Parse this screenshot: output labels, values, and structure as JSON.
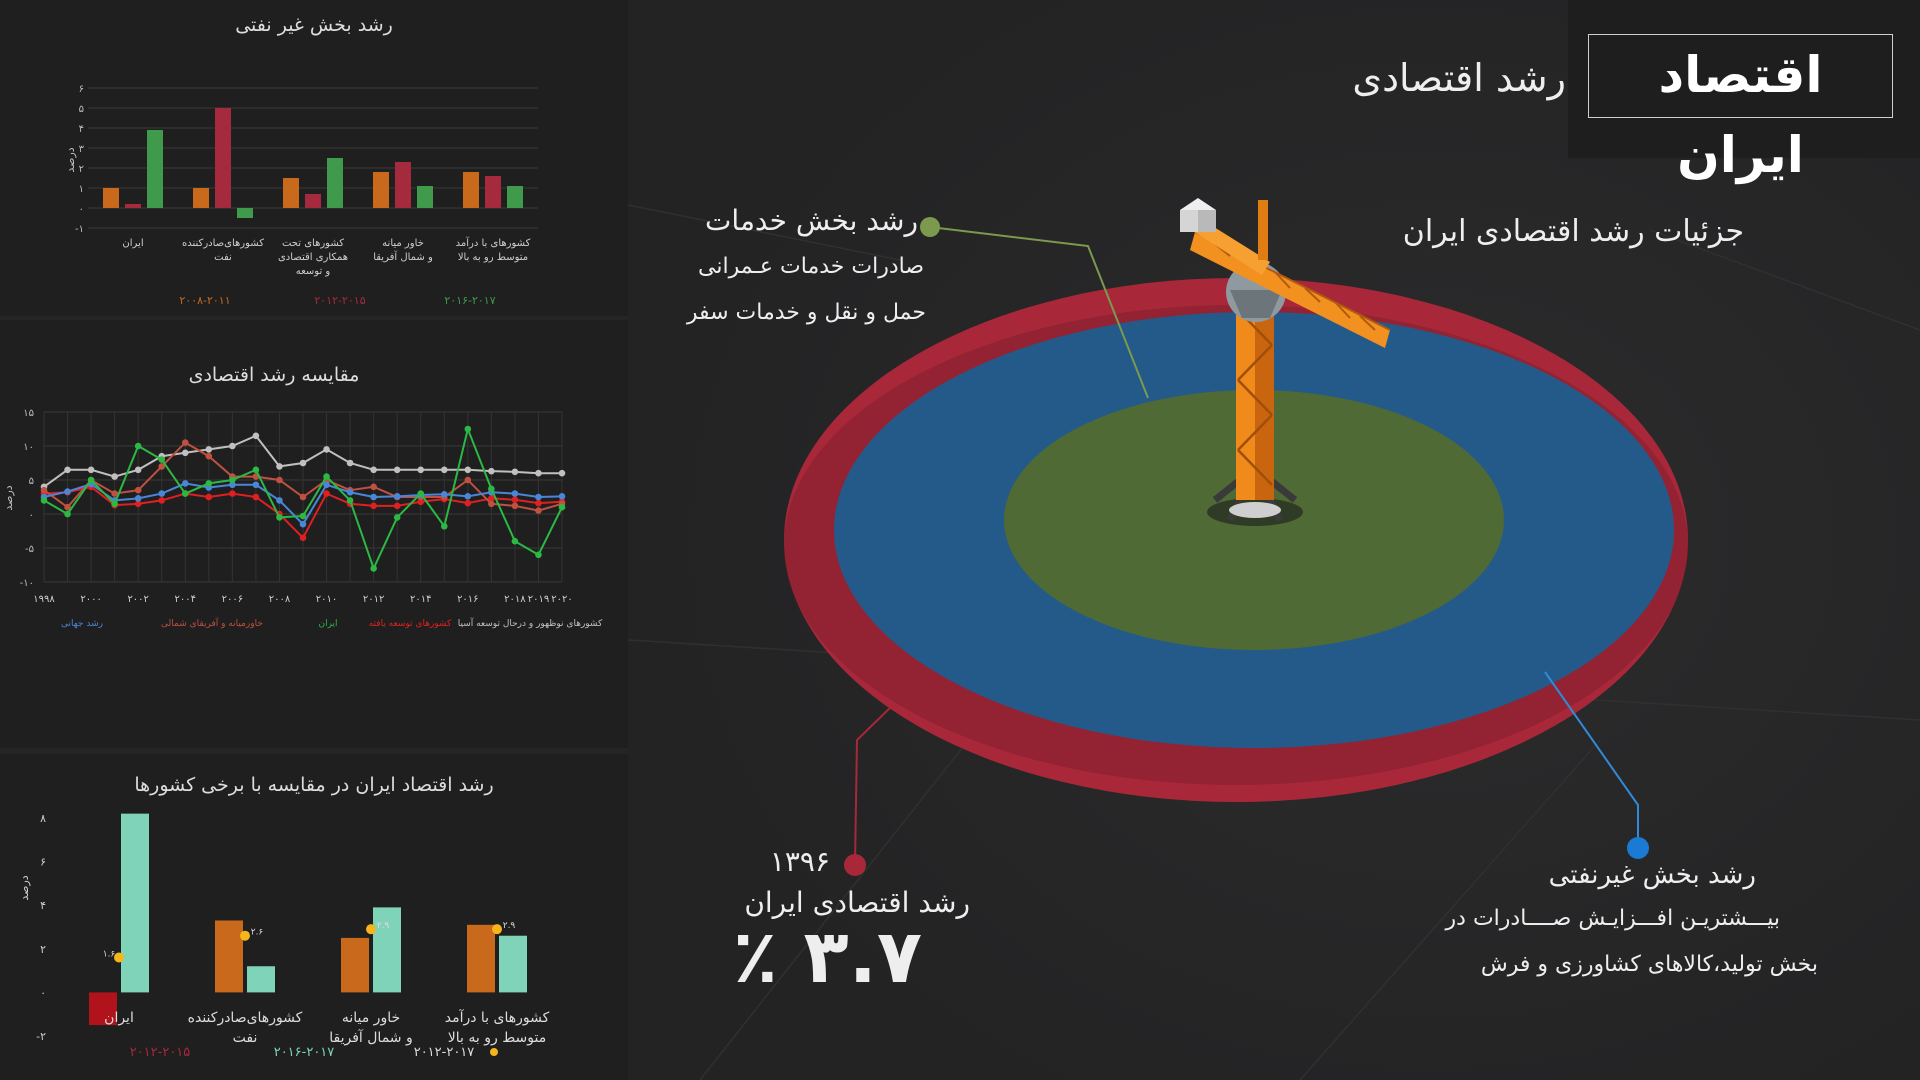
{
  "header": {
    "title": "اقتصاد ایران",
    "subtitle": "رشد اقتصادی",
    "details_title": "جزئیات رشد اقتصادی ایران"
  },
  "annotations": {
    "services_title": "رشد بخش خدمات",
    "services_line1": "صادرات خدمات عـمرانی",
    "services_line2": "حمل و نقل و خدمات سفر",
    "year": "۱۳۹۶",
    "growth_label": "رشد اقتصادی ایران",
    "growth_value": "۳.۷ ٪",
    "nonoil_title": "رشد بخش غیرنفتی",
    "nonoil_line1": "بیـــشتریـن افـــزایـش صــــادرات در",
    "nonoil_line2": "بخش تولید،کالاهای کشاورزی و فرش"
  },
  "colors": {
    "orange": "#c8691c",
    "crimson": "#a52a3d",
    "green": "#3f9a4c",
    "teal": "#7fd3b9",
    "red": "#b0131c",
    "ring_red": "#a8283a",
    "ring_blue": "#245a8a",
    "ring_green": "#4f6a34",
    "gold": "#f5b51b",
    "line_gray": "#c0c0c0",
    "line_blue": "#4a86d8",
    "line_green": "#2bb843",
    "line_red": "#e02020",
    "line_brown": "#c0503f"
  },
  "chart_data": [
    {
      "type": "bar",
      "title": "رشد بخش غیر نفتی",
      "ylabel": "درصد",
      "ylim": [
        -1,
        6
      ],
      "yticks": [
        "-۱",
        "۰",
        "۱",
        "۲",
        "۳",
        "۴",
        "۵",
        "۶"
      ],
      "categories": [
        [
          "ایران"
        ],
        [
          "کشورهای‌صادرکننده",
          "نفت"
        ],
        [
          "کشورهای تحت",
          "همکاری اقتصادی",
          "و توسعه"
        ],
        [
          "خاور میانه",
          "و شمال آفریقا"
        ],
        [
          "کشورهای با درآمد",
          "متوسط رو به بالا"
        ]
      ],
      "series": [
        {
          "name": "۲۰۰۸-۲۰۱۱",
          "values": [
            1.0,
            1.0,
            1.5,
            1.8,
            1.8
          ]
        },
        {
          "name": "۲۰۱۲-۲۰۱۵",
          "values": [
            0.2,
            5.0,
            0.7,
            2.3,
            1.6
          ]
        },
        {
          "name": "۲۰۱۶-۲۰۱۷",
          "values": [
            3.9,
            -0.5,
            2.5,
            1.1,
            1.1
          ]
        }
      ]
    },
    {
      "type": "line",
      "title": "مقایسه رشد اقتصادی",
      "ylabel": "درصد",
      "ylim": [
        -10,
        15
      ],
      "yticks": [
        "-۱۰",
        "-۵",
        "۰",
        "۵",
        "۱۰",
        "۱۵"
      ],
      "x": [
        1998,
        1999,
        2000,
        2001,
        2002,
        2003,
        2004,
        2005,
        2006,
        2007,
        2008,
        2009,
        2010,
        2011,
        2012,
        2013,
        2014,
        2015,
        2016,
        2017,
        2018,
        2019,
        2020
      ],
      "xticks": [
        "۱۹۹۸",
        "۲۰۰۰",
        "۲۰۰۲",
        "۲۰۰۴",
        "۲۰۰۶",
        "۲۰۰۸",
        "۲۰۱۰",
        "۲۰۱۲",
        "۲۰۱۴",
        "۲۰۱۶",
        "۲۰۱۸",
        "۲۰۱۹",
        "۲۰۲۰"
      ],
      "series": [
        {
          "name": "رشد جهانی",
          "values": [
            2.5,
            3.3,
            4.4,
            2.0,
            2.3,
            3.0,
            4.5,
            3.9,
            4.3,
            4.3,
            2.0,
            -1.5,
            4.3,
            3.2,
            2.5,
            2.6,
            2.8,
            2.9,
            2.6,
            3.2,
            3.0,
            2.5,
            2.6
          ]
        },
        {
          "name": "خاورمیانه و آفریقای شمالی",
          "values": [
            3.5,
            1.0,
            5.0,
            3.0,
            3.5,
            7.0,
            10.5,
            8.5,
            5.5,
            5.5,
            5.0,
            2.5,
            5.0,
            3.5,
            4.0,
            2.5,
            2.5,
            2.5,
            5.0,
            1.5,
            1.2,
            0.5,
            1.5
          ]
        },
        {
          "name": "ایران",
          "values": [
            2.0,
            0.0,
            5.0,
            1.5,
            10.0,
            8.0,
            3.0,
            4.5,
            5.0,
            6.5,
            -0.5,
            -0.3,
            5.5,
            2.0,
            -8.0,
            -0.5,
            3.0,
            -1.8,
            12.5,
            3.7,
            -4.0,
            -6.0,
            1.0
          ]
        },
        {
          "name": "کشورهای توسعه یافته",
          "values": [
            3.0,
            3.2,
            4.0,
            1.3,
            1.5,
            2.0,
            3.0,
            2.5,
            3.0,
            2.5,
            0.0,
            -3.5,
            3.0,
            1.5,
            1.2,
            1.2,
            1.8,
            2.2,
            1.6,
            2.3,
            2.1,
            1.6,
            1.8
          ]
        },
        {
          "name": "کشورهای نوظهور و درحال توسعه آسیا",
          "values": [
            4.0,
            6.5,
            6.5,
            5.5,
            6.5,
            8.5,
            9.0,
            9.5,
            10.0,
            11.5,
            7.0,
            7.5,
            9.5,
            7.5,
            6.5,
            6.5,
            6.5,
            6.5,
            6.5,
            6.3,
            6.2,
            6.0,
            6.0
          ]
        }
      ],
      "legend_position": "bottom"
    },
    {
      "type": "bar",
      "title": "رشد اقتصاد ایران در مقایسه با برخی کشورها",
      "ylabel": "درصد",
      "ylim": [
        -2,
        8
      ],
      "yticks": [
        "-۲",
        "۰",
        "۲",
        "۴",
        "۶",
        "۸"
      ],
      "categories": [
        [
          "ایران"
        ],
        [
          "کشورهای‌صادرکننده",
          "نفت"
        ],
        [
          "خاور میانه",
          "و شمال آفریقا"
        ],
        [
          "کشورهای با درآمد",
          "متوسط رو به بالا"
        ]
      ],
      "series": [
        {
          "name": "۲۰۱۲-۲۰۱۵",
          "values": [
            -1.5,
            3.3,
            2.5,
            3.1
          ]
        },
        {
          "name": "۲۰۱۶-۲۰۱۷",
          "values": [
            8.2,
            1.2,
            3.9,
            2.6
          ]
        },
        {
          "name": "۲۰۱۲-۲۰۱۷",
          "values": [
            1.6,
            2.6,
            2.9,
            2.9
          ]
        }
      ],
      "point_labels": [
        "۱.۶",
        "۲.۶",
        "۲.۹",
        "۲.۹"
      ]
    }
  ]
}
